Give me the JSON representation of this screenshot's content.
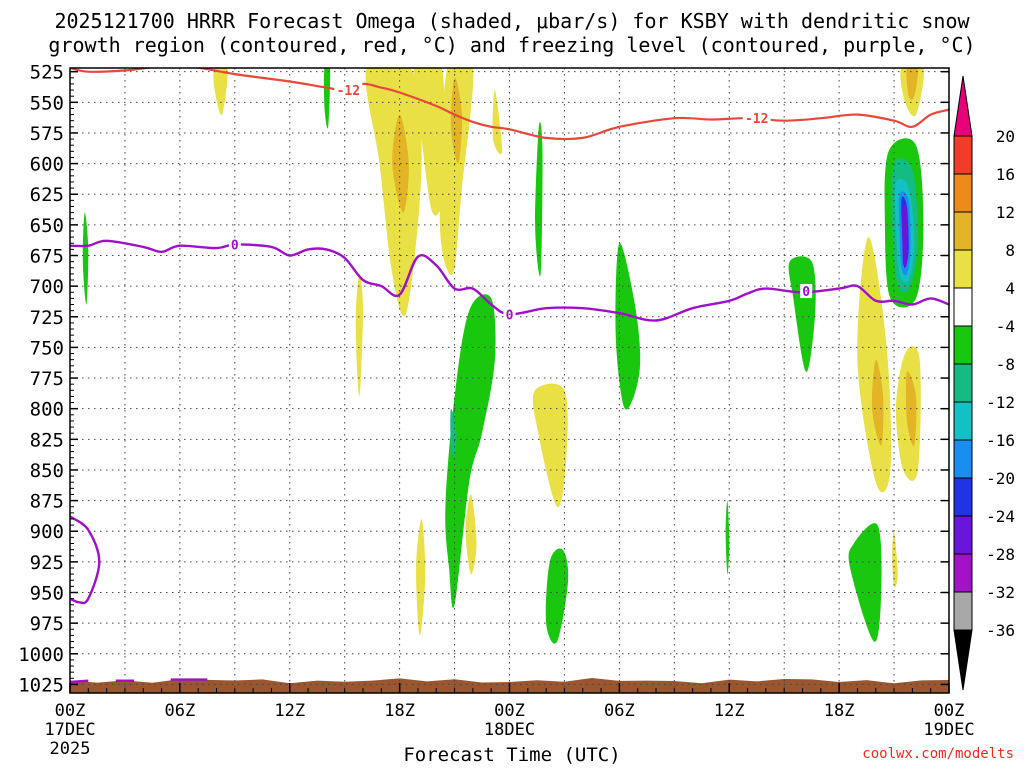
{
  "title_line1": "2025121700 HRRR Forecast Omega (shaded, μbar/s) for KSBY with dendritic snow",
  "title_line2": "growth region (contoured, red, °C) and freezing level (contoured, purple, °C)",
  "credit": "coolwx.com/modelts",
  "chart_data": {
    "type": "heatmap",
    "xlabel": "Forecast Time (UTC)",
    "x_ticks": [
      {
        "hour": 0,
        "label": "00Z",
        "sub": "17DEC",
        "sub2": "2025"
      },
      {
        "hour": 6,
        "label": "06Z"
      },
      {
        "hour": 12,
        "label": "12Z"
      },
      {
        "hour": 18,
        "label": "18Z"
      },
      {
        "hour": 24,
        "label": "00Z",
        "sub": "18DEC"
      },
      {
        "hour": 30,
        "label": "06Z"
      },
      {
        "hour": 36,
        "label": "12Z"
      },
      {
        "hour": 42,
        "label": "18Z"
      },
      {
        "hour": 48,
        "label": "00Z",
        "sub": "19DEC"
      }
    ],
    "x_range_hours": [
      0,
      48
    ],
    "y_levels_hpa": [
      525,
      550,
      575,
      600,
      625,
      650,
      675,
      700,
      725,
      750,
      775,
      800,
      825,
      850,
      875,
      900,
      925,
      950,
      975,
      1000,
      1025
    ],
    "y_range_hpa": [
      522,
      1032
    ],
    "grid": true,
    "colorbar": {
      "labels": [
        20,
        16,
        12,
        8,
        4,
        -4,
        -8,
        -12,
        -16,
        -20,
        -24,
        -28,
        -32,
        -36
      ],
      "colors": [
        "#e8007a",
        "#f03c28",
        "#ee8a1c",
        "#e2b426",
        "#e8e044",
        "#ffffff",
        "#19c80e",
        "#14bb82",
        "#12c0c6",
        "#1a8ef0",
        "#2034e4",
        "#6a16da",
        "#a412c6",
        "#a8a8a8",
        "#000000"
      ]
    },
    "omega_regions": [
      {
        "value": 4,
        "color": "#e8e044",
        "pts": [
          [
            7.9,
            522
          ],
          [
            8.6,
            522
          ],
          [
            8.3,
            560
          ],
          [
            7.9,
            540
          ]
        ]
      },
      {
        "value": 4,
        "color": "#e8e044",
        "pts": [
          [
            16.2,
            522
          ],
          [
            18.6,
            522
          ],
          [
            19.2,
            600
          ],
          [
            18.4,
            720
          ],
          [
            17.6,
            690
          ],
          [
            16.9,
            600
          ]
        ]
      },
      {
        "value": 4,
        "color": "#e8e044",
        "pts": [
          [
            18.8,
            522
          ],
          [
            20.3,
            522
          ],
          [
            20.4,
            620
          ],
          [
            19.8,
            640
          ],
          [
            19.2,
            580
          ]
        ]
      },
      {
        "value": 4,
        "color": "#e8e044",
        "pts": [
          [
            20.6,
            522
          ],
          [
            22.0,
            522
          ],
          [
            21.4,
            620
          ],
          [
            20.9,
            690
          ],
          [
            20.2,
            650
          ]
        ]
      },
      {
        "value": 4,
        "color": "#e8e044",
        "pts": [
          [
            23.2,
            540
          ],
          [
            23.6,
            590
          ],
          [
            23.1,
            580
          ]
        ]
      },
      {
        "value": 4,
        "color": "#e8e044",
        "pts": [
          [
            15.8,
            690
          ],
          [
            16.0,
            720
          ],
          [
            15.8,
            790
          ],
          [
            15.6,
            730
          ]
        ]
      },
      {
        "value": 4,
        "color": "#e8e044",
        "pts": [
          [
            25.4,
            785
          ],
          [
            27.0,
            785
          ],
          [
            27.1,
            840
          ],
          [
            26.6,
            880
          ],
          [
            25.5,
            815
          ]
        ]
      },
      {
        "value": 4,
        "color": "#e8e044",
        "pts": [
          [
            21.9,
            870
          ],
          [
            22.2,
            910
          ],
          [
            21.9,
            935
          ],
          [
            21.6,
            900
          ]
        ]
      },
      {
        "value": 4,
        "color": "#e8e044",
        "pts": [
          [
            19.2,
            890
          ],
          [
            19.4,
            935
          ],
          [
            19.1,
            985
          ],
          [
            18.9,
            930
          ]
        ]
      },
      {
        "value": 4,
        "color": "#e8e044",
        "pts": [
          [
            43.6,
            660
          ],
          [
            44.6,
            750
          ],
          [
            44.8,
            850
          ],
          [
            44.0,
            860
          ],
          [
            43.0,
            760
          ]
        ]
      },
      {
        "value": 4,
        "color": "#e8e044",
        "pts": [
          [
            45.6,
            755
          ],
          [
            46.4,
            760
          ],
          [
            46.3,
            850
          ],
          [
            45.5,
            850
          ],
          [
            45.1,
            800
          ]
        ]
      },
      {
        "value": 4,
        "color": "#e8e044",
        "pts": [
          [
            45.4,
            522
          ],
          [
            46.6,
            522
          ],
          [
            46.2,
            560
          ],
          [
            45.6,
            550
          ]
        ]
      },
      {
        "value": 4,
        "color": "#e8e044",
        "pts": [
          [
            45.0,
            900
          ],
          [
            45.2,
            935
          ],
          [
            45.0,
            945
          ],
          [
            44.9,
            920
          ]
        ]
      },
      {
        "value": 8,
        "color": "#e2b426",
        "pts": [
          [
            18.0,
            560
          ],
          [
            18.5,
            600
          ],
          [
            18.2,
            640
          ],
          [
            17.6,
            600
          ]
        ]
      },
      {
        "value": 8,
        "color": "#e2b426",
        "pts": [
          [
            21.0,
            530
          ],
          [
            21.4,
            560
          ],
          [
            21.2,
            600
          ],
          [
            20.8,
            570
          ]
        ]
      },
      {
        "value": 8,
        "color": "#e2b426",
        "pts": [
          [
            44.0,
            760
          ],
          [
            44.4,
            790
          ],
          [
            44.3,
            830
          ],
          [
            43.8,
            800
          ]
        ]
      },
      {
        "value": 8,
        "color": "#e2b426",
        "pts": [
          [
            45.7,
            770
          ],
          [
            46.2,
            790
          ],
          [
            46.1,
            830
          ],
          [
            45.7,
            810
          ]
        ]
      },
      {
        "value": 8,
        "color": "#e2b426",
        "pts": [
          [
            45.7,
            522
          ],
          [
            46.3,
            522
          ],
          [
            46.1,
            545
          ],
          [
            45.8,
            545
          ]
        ]
      },
      {
        "value": -4,
        "color": "#19c80e",
        "pts": [
          [
            0.8,
            640
          ],
          [
            1.0,
            670
          ],
          [
            0.9,
            715
          ],
          [
            0.7,
            680
          ]
        ]
      },
      {
        "value": -4,
        "color": "#19c80e",
        "pts": [
          [
            13.9,
            522
          ],
          [
            14.2,
            522
          ],
          [
            14.1,
            570
          ],
          [
            13.9,
            555
          ]
        ]
      },
      {
        "value": -4,
        "color": "#19c80e",
        "pts": [
          [
            25.6,
            570
          ],
          [
            25.8,
            590
          ],
          [
            25.7,
            690
          ],
          [
            25.4,
            650
          ]
        ]
      },
      {
        "value": -4,
        "color": "#19c80e",
        "pts": [
          [
            21.8,
            720
          ],
          [
            23.0,
            710
          ],
          [
            23.2,
            760
          ],
          [
            22.5,
            820
          ],
          [
            21.8,
            860
          ],
          [
            21.0,
            960
          ],
          [
            20.7,
            930
          ],
          [
            20.5,
            880
          ],
          [
            21.0,
            790
          ]
        ]
      },
      {
        "value": -4,
        "color": "#19c80e",
        "pts": [
          [
            30.0,
            665
          ],
          [
            30.9,
            720
          ],
          [
            31.1,
            770
          ],
          [
            30.3,
            800
          ],
          [
            29.8,
            740
          ]
        ]
      },
      {
        "value": -4,
        "color": "#19c80e",
        "pts": [
          [
            26.9,
            915
          ],
          [
            27.2,
            940
          ],
          [
            26.6,
            990
          ],
          [
            26.0,
            975
          ],
          [
            26.2,
            925
          ]
        ]
      },
      {
        "value": -4,
        "color": "#19c80e",
        "pts": [
          [
            39.3,
            680
          ],
          [
            40.5,
            680
          ],
          [
            40.7,
            720
          ],
          [
            40.2,
            770
          ],
          [
            39.5,
            710
          ]
        ]
      },
      {
        "value": -4,
        "color": "#19c80e",
        "pts": [
          [
            35.9,
            875
          ],
          [
            36.0,
            910
          ],
          [
            35.9,
            935
          ],
          [
            35.8,
            900
          ]
        ]
      },
      {
        "value": -4,
        "color": "#19c80e",
        "pts": [
          [
            42.8,
            910
          ],
          [
            44.1,
            895
          ],
          [
            44.3,
            950
          ],
          [
            43.9,
            990
          ],
          [
            42.6,
            930
          ]
        ]
      },
      {
        "value": -4,
        "color": "#19c80e",
        "pts": [
          [
            44.7,
            590
          ],
          [
            46.2,
            585
          ],
          [
            46.6,
            650
          ],
          [
            46.2,
            710
          ],
          [
            44.8,
            710
          ],
          [
            44.5,
            650
          ]
        ]
      },
      {
        "value": -8,
        "color": "#14bb82",
        "pts": [
          [
            20.8,
            800
          ],
          [
            21.1,
            820
          ],
          [
            21.0,
            840
          ],
          [
            20.8,
            830
          ]
        ]
      },
      {
        "value": -8,
        "color": "#14bb82",
        "pts": [
          [
            45.0,
            600
          ],
          [
            46.0,
            605
          ],
          [
            46.3,
            660
          ],
          [
            45.9,
            700
          ],
          [
            45.2,
            700
          ],
          [
            44.9,
            650
          ]
        ]
      },
      {
        "value": -12,
        "color": "#12c0c6",
        "pts": [
          [
            45.1,
            615
          ],
          [
            45.8,
            620
          ],
          [
            46.1,
            665
          ],
          [
            45.8,
            695
          ],
          [
            45.3,
            690
          ],
          [
            45.1,
            650
          ]
        ]
      },
      {
        "value": -16,
        "color": "#1a8ef0",
        "pts": [
          [
            45.3,
            625
          ],
          [
            45.8,
            630
          ],
          [
            45.9,
            670
          ],
          [
            45.7,
            690
          ],
          [
            45.4,
            685
          ],
          [
            45.3,
            655
          ]
        ]
      },
      {
        "value": -20,
        "color": "#2034e4",
        "pts": [
          [
            45.4,
            630
          ],
          [
            45.7,
            635
          ],
          [
            45.8,
            670
          ],
          [
            45.6,
            685
          ],
          [
            45.5,
            675
          ]
        ]
      },
      {
        "value": -24,
        "color": "#6a16da",
        "pts": [
          [
            45.45,
            635
          ],
          [
            45.7,
            640
          ],
          [
            45.7,
            680
          ],
          [
            45.5,
            682
          ],
          [
            45.45,
            660
          ]
        ]
      }
    ],
    "dgz_contour": {
      "label": "-12",
      "color": "#e8473c",
      "label_positions": [
        [
          15.2,
          540
        ],
        [
          37.5,
          563
        ]
      ],
      "points": [
        [
          0,
          522
        ],
        [
          1,
          525
        ],
        [
          3,
          524
        ],
        [
          6,
          520
        ],
        [
          9,
          527
        ],
        [
          12,
          533
        ],
        [
          14,
          538
        ],
        [
          15,
          540
        ],
        [
          16,
          535
        ],
        [
          17,
          538
        ],
        [
          18,
          542
        ],
        [
          20,
          553
        ],
        [
          21,
          560
        ],
        [
          22,
          566
        ],
        [
          23,
          570
        ],
        [
          24,
          572
        ],
        [
          26,
          579
        ],
        [
          28,
          579
        ],
        [
          30,
          570
        ],
        [
          33,
          563
        ],
        [
          35,
          564
        ],
        [
          37,
          563
        ],
        [
          39,
          565
        ],
        [
          41,
          563
        ],
        [
          43,
          560
        ],
        [
          45,
          565
        ],
        [
          46,
          570
        ],
        [
          47,
          560
        ],
        [
          48,
          556
        ]
      ]
    },
    "freezing_contour": {
      "label": "0",
      "color": "#a010c8",
      "label_positions": [
        [
          9.0,
          666
        ],
        [
          24.0,
          723
        ],
        [
          40.2,
          704
        ]
      ],
      "points": [
        [
          0,
          667
        ],
        [
          1,
          667
        ],
        [
          2,
          663
        ],
        [
          4,
          668
        ],
        [
          5,
          672
        ],
        [
          6,
          667
        ],
        [
          8,
          669
        ],
        [
          9,
          666
        ],
        [
          11,
          668
        ],
        [
          12,
          675
        ],
        [
          13,
          670
        ],
        [
          14,
          670
        ],
        [
          15,
          677
        ],
        [
          16,
          695
        ],
        [
          17,
          700
        ],
        [
          18,
          707
        ],
        [
          19,
          676
        ],
        [
          20,
          683
        ],
        [
          21,
          702
        ],
        [
          22,
          702
        ],
        [
          23,
          715
        ],
        [
          24,
          723
        ],
        [
          26,
          718
        ],
        [
          28,
          718
        ],
        [
          30,
          722
        ],
        [
          32,
          728
        ],
        [
          34,
          718
        ],
        [
          36,
          712
        ],
        [
          37,
          706
        ],
        [
          38,
          702
        ],
        [
          40,
          705
        ],
        [
          42,
          702
        ],
        [
          43,
          700
        ],
        [
          44,
          712
        ],
        [
          45,
          712
        ],
        [
          46,
          715
        ],
        [
          47,
          710
        ],
        [
          48,
          715
        ]
      ],
      "low_segment": [
        [
          0,
          888
        ],
        [
          1,
          899
        ],
        [
          1.6,
          925
        ],
        [
          1.0,
          955
        ],
        [
          0.5,
          958
        ],
        [
          0,
          955
        ]
      ]
    },
    "terrain": {
      "color": "#9a562e",
      "top_hpa": 1022
    }
  }
}
